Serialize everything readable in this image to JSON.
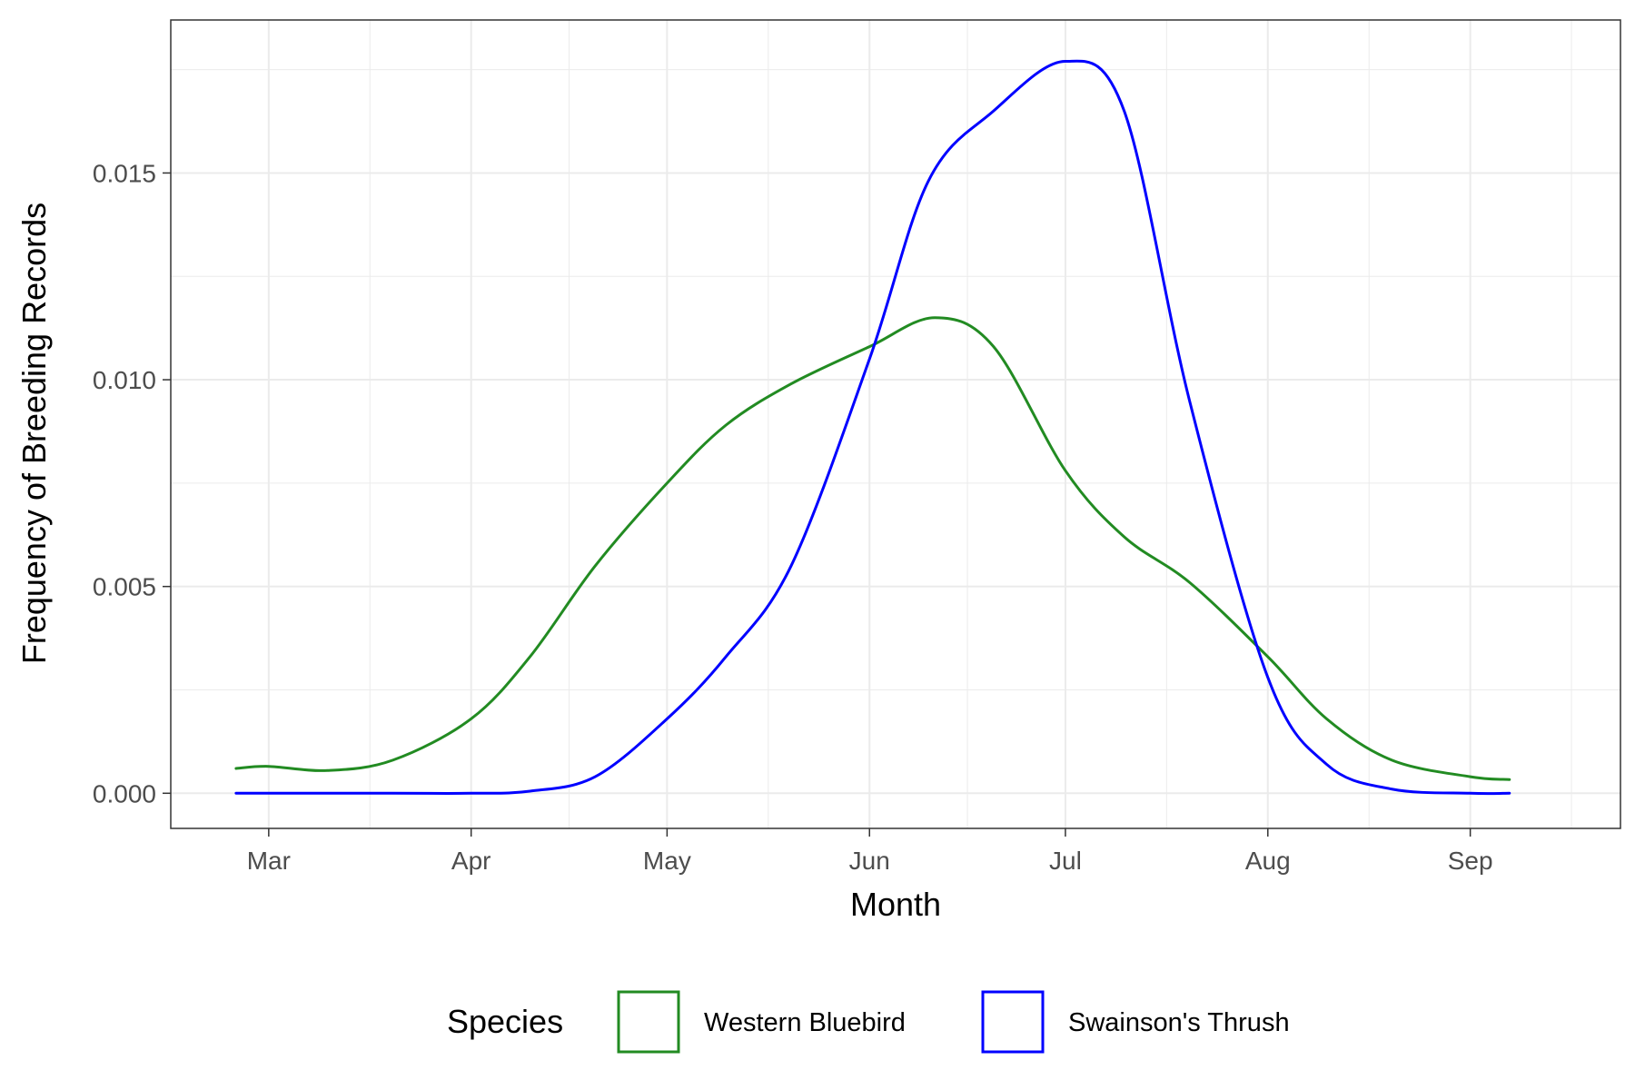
{
  "chart_data": {
    "type": "line",
    "title": "",
    "xlabel": "Month",
    "ylabel": "Frequency of Breeding Records",
    "x_tick_labels": [
      "Mar",
      "Apr",
      "May",
      "Jun",
      "Jul",
      "Aug",
      "Sep"
    ],
    "y_tick_labels": [
      "0.000",
      "0.005",
      "0.010",
      "0.015"
    ],
    "y_ticks": [
      0,
      0.005,
      0.01,
      0.015
    ],
    "ylim": [
      -0.00085,
      0.0187
    ],
    "xlim": [
      "Feb 14",
      "Sep 24"
    ],
    "x_ticks": [
      "Mar 1",
      "Apr 1",
      "May 1",
      "Jun 1",
      "Jul 1",
      "Aug 1",
      "Sep 1"
    ],
    "grid": true,
    "legend": {
      "title": "Species",
      "position": "bottom",
      "entries": [
        "Western Bluebird",
        "Swainson's Thrush"
      ]
    },
    "series": [
      {
        "name": "Western Bluebird",
        "color": "#228B22",
        "x": [
          "Feb 24",
          "Mar 1",
          "Mar 10",
          "Mar 20",
          "Apr 1",
          "Apr 10",
          "Apr 20",
          "May 1",
          "May 10",
          "May 20",
          "Jun 1",
          "Jun 11",
          "Jun 20",
          "Jul 1",
          "Jul 10",
          "Jul 20",
          "Aug 1",
          "Aug 10",
          "Aug 20",
          "Sep 1",
          "Sep 7"
        ],
        "values": [
          0.0006,
          0.00065,
          0.00055,
          0.0008,
          0.0018,
          0.0033,
          0.0055,
          0.0075,
          0.0089,
          0.0099,
          0.0108,
          0.0115,
          0.0108,
          0.0078,
          0.0062,
          0.0051,
          0.0033,
          0.0018,
          0.0008,
          0.0004,
          0.00033
        ]
      },
      {
        "name": "Swainson's Thrush",
        "color": "#0000FF",
        "x": [
          "Feb 24",
          "Mar 20",
          "Apr 1",
          "Apr 10",
          "Apr 20",
          "May 1",
          "May 10",
          "May 20",
          "Jun 1",
          "Jun 10",
          "Jun 20",
          "Jul 1",
          "Jul 10",
          "Jul 20",
          "Aug 1",
          "Aug 10",
          "Aug 20",
          "Sep 1",
          "Sep 7"
        ],
        "values": [
          0,
          0,
          0,
          5e-05,
          0.0004,
          0.0018,
          0.0033,
          0.0055,
          0.0105,
          0.0148,
          0.0165,
          0.0177,
          0.0165,
          0.0095,
          0.0028,
          0.0007,
          0.0001,
          0,
          0
        ]
      }
    ]
  }
}
